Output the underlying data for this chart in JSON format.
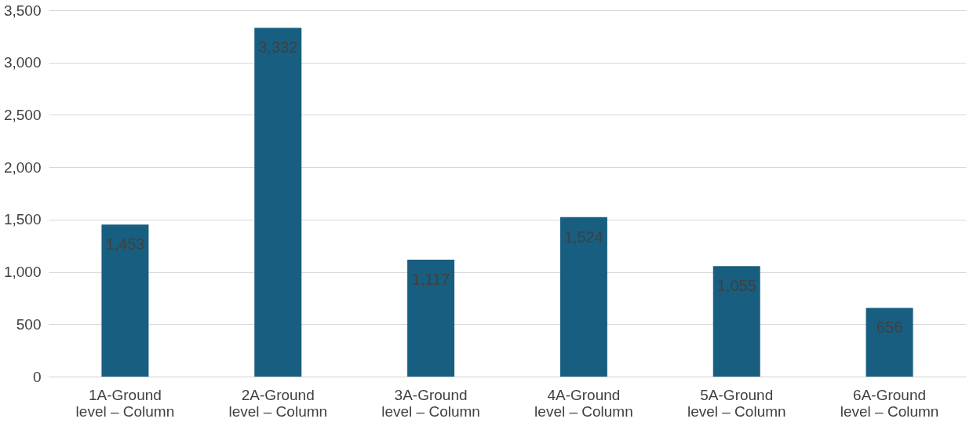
{
  "chart_data": {
    "type": "bar",
    "categories": [
      "1A-Ground level – Column",
      "2A-Ground level – Column",
      "3A-Ground level – Column",
      "4A-Ground level – Column",
      "5A-Ground level – Column",
      "6A-Ground level – Column"
    ],
    "values": [
      1453,
      3332,
      1117,
      1524,
      1055,
      656
    ],
    "color": "#175e80",
    "ylim": [
      0,
      3500
    ],
    "yticks": [
      {
        "value": 0,
        "label": "0"
      },
      {
        "value": 500,
        "label": "500"
      },
      {
        "value": 1000,
        "label": "1,000"
      },
      {
        "value": 1500,
        "label": "1,500"
      },
      {
        "value": 2000,
        "label": "2,000"
      },
      {
        "value": 2500,
        "label": "2,500"
      },
      {
        "value": 3000,
        "label": "3,000"
      },
      {
        "value": 3500,
        "label": "3,500"
      }
    ],
    "value_labels": [
      "1,453",
      "3,332",
      "1,117",
      "1,524",
      "1,055",
      "656"
    ],
    "grid": "y"
  }
}
